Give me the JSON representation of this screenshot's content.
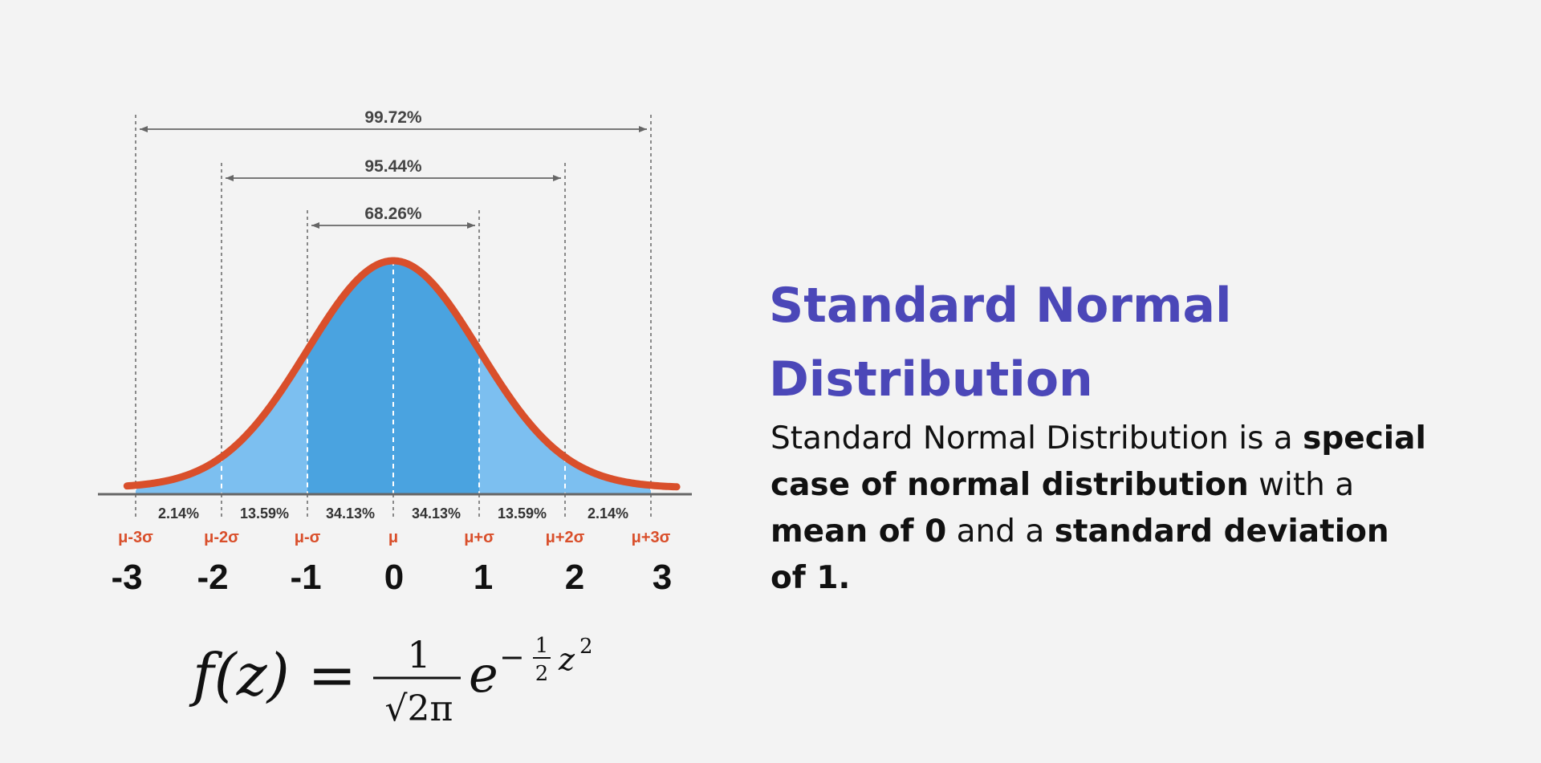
{
  "heading": {
    "title_line1": "Standard Normal",
    "title_line2": "Distribution"
  },
  "description": {
    "part1": "Standard Normal Distribution is a ",
    "part2_bold": "special case of normal distribution",
    "part3": " with a ",
    "part4_bold": "mean of 0",
    "part5": " and a ",
    "part6_bold": "standard deviation of 1."
  },
  "formula": {
    "lhs": "f(z) =",
    "numerator": "1",
    "denominator": "√2π",
    "base": "e",
    "exp_sign": "−",
    "exp_num": "1",
    "exp_den": "2",
    "exp_var": "z",
    "exp_power": "2"
  },
  "colors": {
    "background": "#f3f3f3",
    "curve": "#d94f2b",
    "fill_inner": "#4aa3e0",
    "fill_outer": "#7cbff0",
    "accent_text": "#d94f2b",
    "title": "#4b47b8",
    "guide": "#666666"
  },
  "chart_data": {
    "type": "area",
    "curve": "standard normal density",
    "mean": 0,
    "sd": 1,
    "xlim": [
      -3.1,
      3.3
    ],
    "z_ticks": [
      "-3",
      "-2",
      "-1",
      "0",
      "1",
      "2",
      "3"
    ],
    "sigma_labels": [
      "μ-3σ",
      "μ-2σ",
      "μ-σ",
      "μ",
      "μ+σ",
      "μ+2σ",
      "μ+3σ"
    ],
    "segments": [
      {
        "from": -3,
        "to": -2,
        "label": "2.14%"
      },
      {
        "from": -2,
        "to": -1,
        "label": "13.59%"
      },
      {
        "from": -1,
        "to": 0,
        "label": "34.13%"
      },
      {
        "from": 0,
        "to": 1,
        "label": "34.13%"
      },
      {
        "from": 1,
        "to": 2,
        "label": "13.59%"
      },
      {
        "from": 2,
        "to": 3,
        "label": "2.14%"
      }
    ],
    "ranges": [
      {
        "from": -1,
        "to": 1,
        "label": "68.26%"
      },
      {
        "from": -2,
        "to": 2,
        "label": "95.44%"
      },
      {
        "from": -3,
        "to": 3,
        "label": "99.72%"
      }
    ]
  }
}
